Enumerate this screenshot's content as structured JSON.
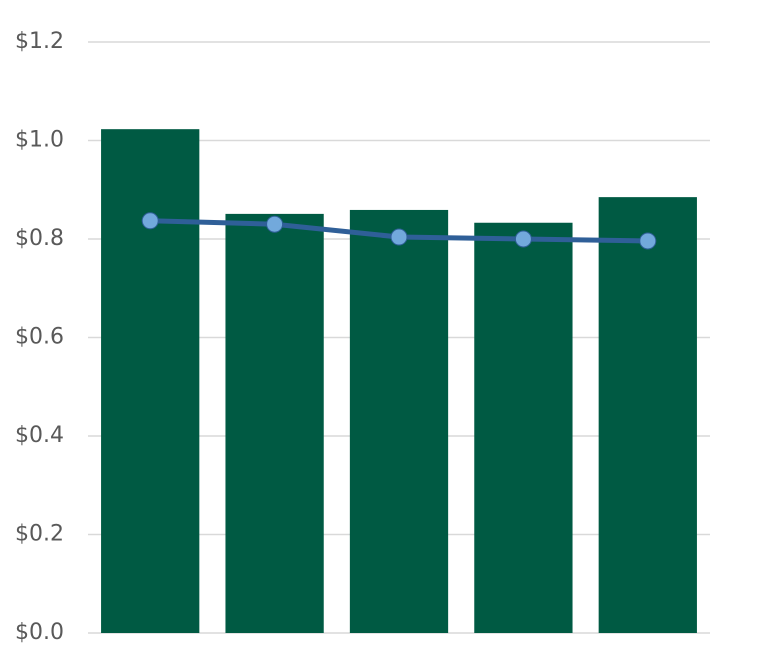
{
  "chart_data": {
    "type": "bar",
    "categories": [
      null,
      null,
      null,
      null,
      null
    ],
    "series": [
      {
        "type": "bar",
        "color": "#005a43",
        "values": [
          1.023,
          0.851,
          0.859,
          0.833,
          0.885
        ]
      },
      {
        "type": "line",
        "color": "#2f5f98",
        "marker_color": "#72a9dc",
        "values": [
          0.837,
          0.83,
          0.804,
          0.8,
          0.796
        ]
      }
    ],
    "ylim": [
      0,
      1.2
    ],
    "yticks": [
      {
        "value": 0,
        "label": "$0.0"
      },
      {
        "value": 0.2,
        "label": "$0.2"
      },
      {
        "value": 0.4,
        "label": "$0.4"
      },
      {
        "value": 0.6,
        "label": "$0.6"
      },
      {
        "value": 0.8,
        "label": "$0.8"
      },
      {
        "value": 1.0,
        "label": "$1.0"
      },
      {
        "value": 1.2,
        "label": "$1.2"
      }
    ],
    "grid": true
  }
}
